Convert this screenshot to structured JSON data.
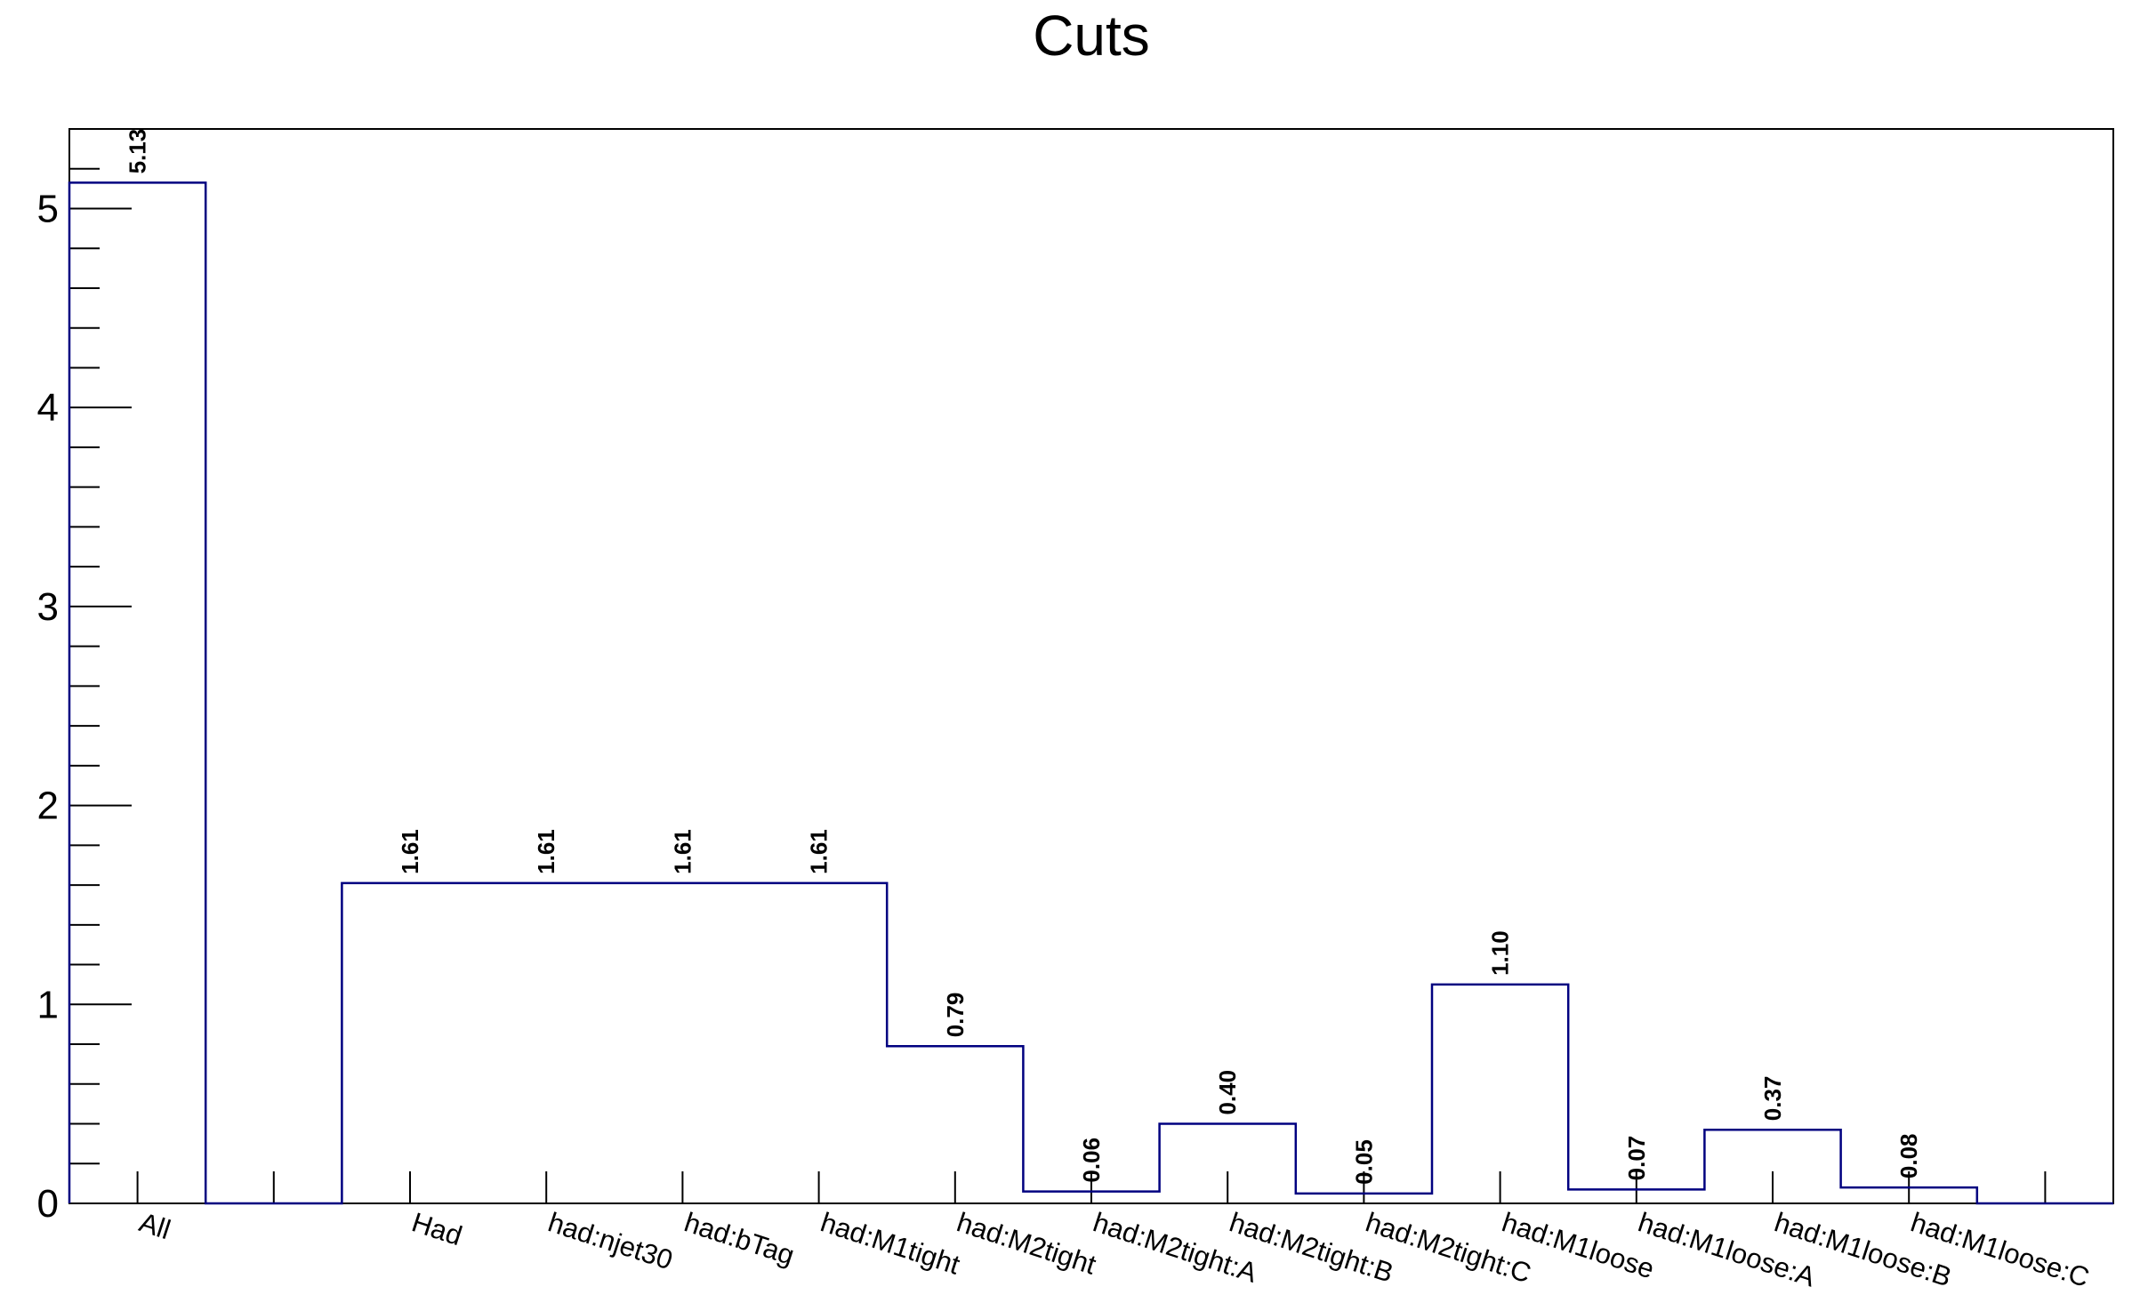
{
  "chart_data": {
    "type": "bar",
    "title": "Cuts",
    "xlabel": "",
    "ylabel": "",
    "histogram_style": "step",
    "line_color": "#000080",
    "grid": false,
    "legend": "none",
    "ylim": [
      0,
      5.4
    ],
    "y_major_ticks": [
      0,
      1,
      2,
      3,
      4,
      5
    ],
    "y_minor_step": 0.2,
    "categories": [
      "All",
      "",
      "Had",
      "had:njet30",
      "had:bTag",
      "had:M1tight",
      "had:M2tight",
      "had:M2tight:A",
      "had:M2tight:B",
      "had:M2tight:C",
      "had:M1loose",
      "had:M1loose:A",
      "had:M1loose:B",
      "had:M1loose:C",
      ""
    ],
    "values": [
      5.13,
      0,
      1.61,
      1.61,
      1.61,
      1.61,
      0.79,
      0.06,
      0.4,
      0.05,
      1.1,
      0.07,
      0.37,
      0.08,
      0
    ],
    "data_labels": [
      "5.13",
      "",
      "1.61",
      "1.61",
      "1.61",
      "1.61",
      "0.79",
      "0.06",
      "0.40",
      "0.05",
      "1.10",
      "0.07",
      "0.37",
      "0.08",
      ""
    ]
  }
}
